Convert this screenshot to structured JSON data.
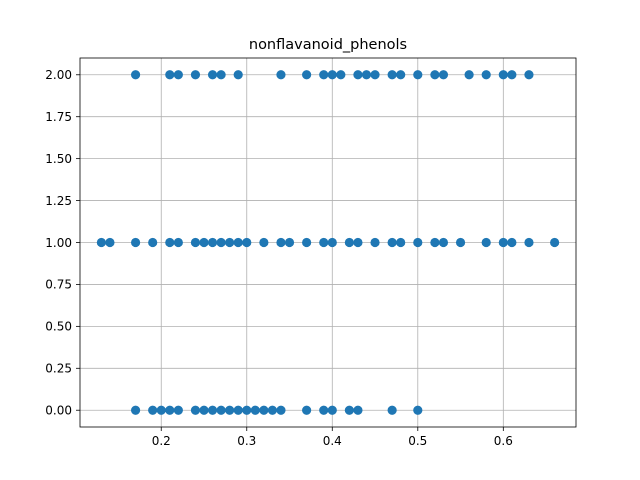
{
  "chart_data": {
    "type": "scatter",
    "title": "nonflavanoid_phenols",
    "xlabel": "",
    "ylabel": "",
    "xlim": [
      0.105,
      0.685
    ],
    "ylim": [
      -0.1,
      2.1
    ],
    "x_ticks": [
      0.2,
      0.3,
      0.4,
      0.5,
      0.6
    ],
    "x_tick_labels": [
      "0.2",
      "0.3",
      "0.4",
      "0.5",
      "0.6"
    ],
    "y_ticks": [
      0.0,
      0.25,
      0.5,
      0.75,
      1.0,
      1.25,
      1.5,
      1.75,
      2.0
    ],
    "y_tick_labels": [
      "0.00",
      "0.25",
      "0.50",
      "0.75",
      "1.00",
      "1.25",
      "1.50",
      "1.75",
      "2.00"
    ],
    "grid": true,
    "marker_color": "#1f77b4",
    "series": [
      {
        "points": [
          {
            "x": 0.17,
            "y": 2
          },
          {
            "x": 0.21,
            "y": 2
          },
          {
            "x": 0.22,
            "y": 2
          },
          {
            "x": 0.24,
            "y": 2
          },
          {
            "x": 0.26,
            "y": 2
          },
          {
            "x": 0.27,
            "y": 2
          },
          {
            "x": 0.29,
            "y": 2
          },
          {
            "x": 0.34,
            "y": 2
          },
          {
            "x": 0.37,
            "y": 2
          },
          {
            "x": 0.39,
            "y": 2
          },
          {
            "x": 0.4,
            "y": 2
          },
          {
            "x": 0.41,
            "y": 2
          },
          {
            "x": 0.43,
            "y": 2
          },
          {
            "x": 0.44,
            "y": 2
          },
          {
            "x": 0.45,
            "y": 2
          },
          {
            "x": 0.47,
            "y": 2
          },
          {
            "x": 0.48,
            "y": 2
          },
          {
            "x": 0.5,
            "y": 2
          },
          {
            "x": 0.52,
            "y": 2
          },
          {
            "x": 0.53,
            "y": 2
          },
          {
            "x": 0.56,
            "y": 2
          },
          {
            "x": 0.58,
            "y": 2
          },
          {
            "x": 0.6,
            "y": 2
          },
          {
            "x": 0.61,
            "y": 2
          },
          {
            "x": 0.63,
            "y": 2
          },
          {
            "x": 0.13,
            "y": 1
          },
          {
            "x": 0.14,
            "y": 1
          },
          {
            "x": 0.17,
            "y": 1
          },
          {
            "x": 0.19,
            "y": 1
          },
          {
            "x": 0.21,
            "y": 1
          },
          {
            "x": 0.22,
            "y": 1
          },
          {
            "x": 0.24,
            "y": 1
          },
          {
            "x": 0.25,
            "y": 1
          },
          {
            "x": 0.26,
            "y": 1
          },
          {
            "x": 0.27,
            "y": 1
          },
          {
            "x": 0.28,
            "y": 1
          },
          {
            "x": 0.29,
            "y": 1
          },
          {
            "x": 0.3,
            "y": 1
          },
          {
            "x": 0.32,
            "y": 1
          },
          {
            "x": 0.34,
            "y": 1
          },
          {
            "x": 0.35,
            "y": 1
          },
          {
            "x": 0.37,
            "y": 1
          },
          {
            "x": 0.39,
            "y": 1
          },
          {
            "x": 0.4,
            "y": 1
          },
          {
            "x": 0.42,
            "y": 1
          },
          {
            "x": 0.43,
            "y": 1
          },
          {
            "x": 0.45,
            "y": 1
          },
          {
            "x": 0.47,
            "y": 1
          },
          {
            "x": 0.48,
            "y": 1
          },
          {
            "x": 0.5,
            "y": 1
          },
          {
            "x": 0.52,
            "y": 1
          },
          {
            "x": 0.53,
            "y": 1
          },
          {
            "x": 0.55,
            "y": 1
          },
          {
            "x": 0.58,
            "y": 1
          },
          {
            "x": 0.6,
            "y": 1
          },
          {
            "x": 0.61,
            "y": 1
          },
          {
            "x": 0.63,
            "y": 1
          },
          {
            "x": 0.66,
            "y": 1
          },
          {
            "x": 0.17,
            "y": 0
          },
          {
            "x": 0.19,
            "y": 0
          },
          {
            "x": 0.2,
            "y": 0
          },
          {
            "x": 0.21,
            "y": 0
          },
          {
            "x": 0.22,
            "y": 0
          },
          {
            "x": 0.24,
            "y": 0
          },
          {
            "x": 0.25,
            "y": 0
          },
          {
            "x": 0.26,
            "y": 0
          },
          {
            "x": 0.27,
            "y": 0
          },
          {
            "x": 0.28,
            "y": 0
          },
          {
            "x": 0.29,
            "y": 0
          },
          {
            "x": 0.3,
            "y": 0
          },
          {
            "x": 0.31,
            "y": 0
          },
          {
            "x": 0.32,
            "y": 0
          },
          {
            "x": 0.33,
            "y": 0
          },
          {
            "x": 0.34,
            "y": 0
          },
          {
            "x": 0.37,
            "y": 0
          },
          {
            "x": 0.39,
            "y": 0
          },
          {
            "x": 0.4,
            "y": 0
          },
          {
            "x": 0.42,
            "y": 0
          },
          {
            "x": 0.43,
            "y": 0
          },
          {
            "x": 0.47,
            "y": 0
          },
          {
            "x": 0.5,
            "y": 0
          }
        ]
      }
    ]
  }
}
